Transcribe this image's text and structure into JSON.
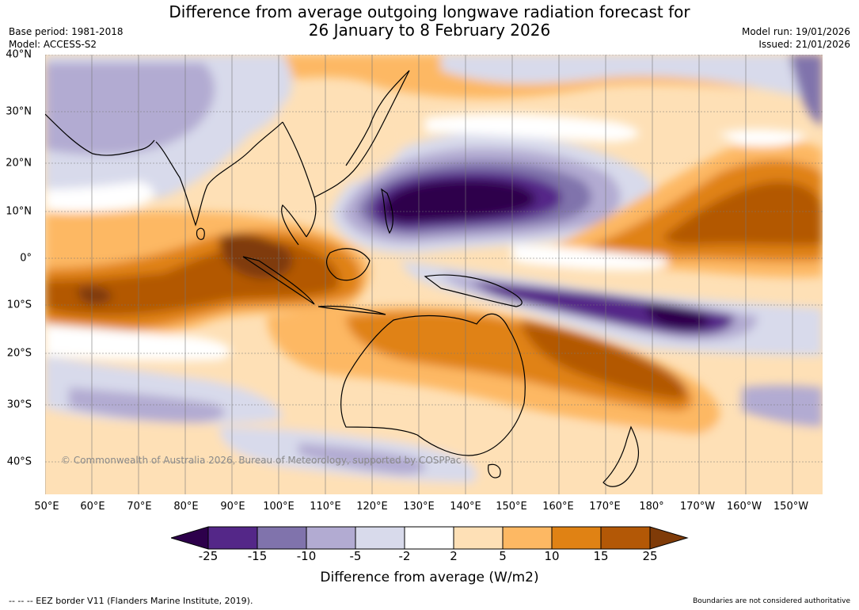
{
  "title": {
    "line1": "Difference from average outgoing longwave radiation forecast for",
    "line2": "26 January to 8 February 2026"
  },
  "meta": {
    "base_period": "Base period: 1981-2018",
    "model": "Model: ACCESS-S2",
    "model_run": "Model run: 19/01/2026",
    "issued": "Issued: 21/01/2026"
  },
  "map": {
    "lat_labels": [
      "40°N",
      "30°N",
      "20°N",
      "10°N",
      "0°",
      "10°S",
      "20°S",
      "30°S",
      "40°S"
    ],
    "lon_labels": [
      "50°E",
      "60°E",
      "70°E",
      "80°E",
      "90°E",
      "100°E",
      "110°E",
      "120°E",
      "130°E",
      "140°E",
      "150°E",
      "160°E",
      "170°E",
      "180°",
      "170°W",
      "160°W",
      "150°W"
    ],
    "copyright": "© Commonwealth of Australia 2026, Bureau of Meteorology, supported by COSPPac"
  },
  "colorbar": {
    "title": "Difference from average (W/m2)",
    "ticks": [
      "-25",
      "-15",
      "-10",
      "-5",
      "-2",
      "2",
      "5",
      "10",
      "15",
      "25"
    ],
    "colors": [
      "#2d004b",
      "#542788",
      "#8073ac",
      "#b2abd2",
      "#d8daeb",
      "#ffffff",
      "#fee0b6",
      "#fdb863",
      "#e08214",
      "#b35806",
      "#7f3b08"
    ]
  },
  "footer": {
    "eez": "--  --  -- EEZ border V11 (Flanders Marine Institute, 2019).",
    "boundaries": "Boundaries are not considered authoritative"
  }
}
